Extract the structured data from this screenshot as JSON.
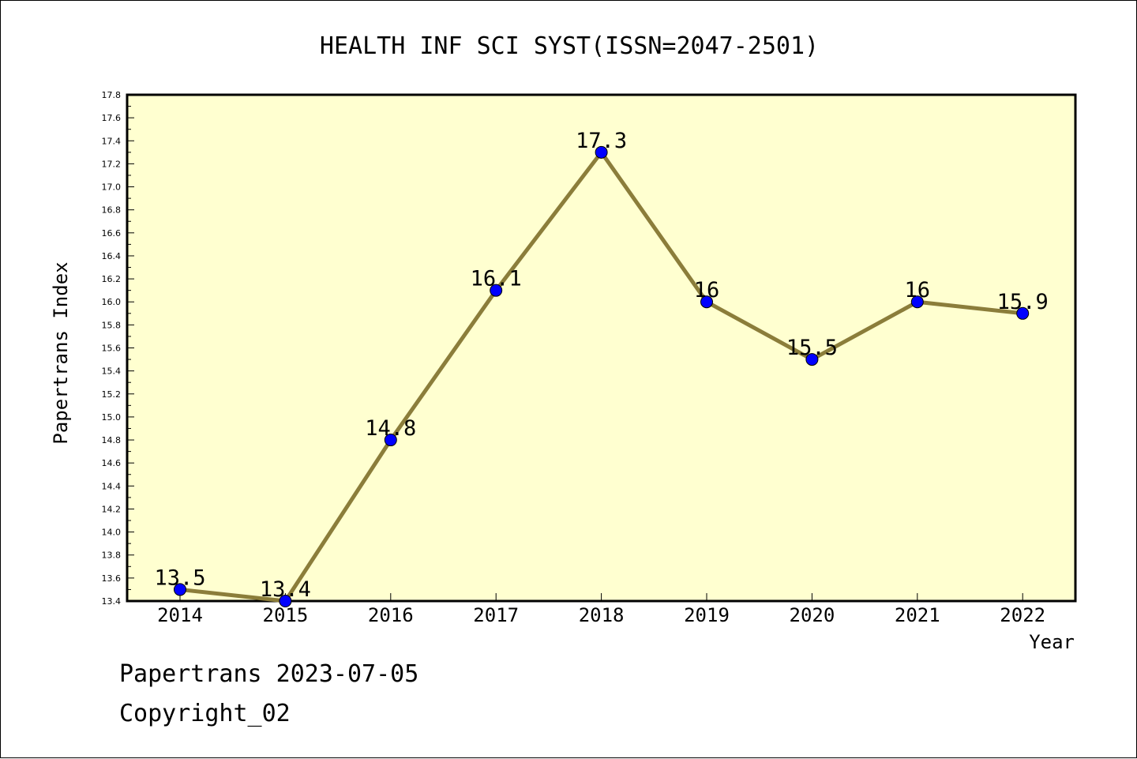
{
  "chart_data": {
    "type": "line",
    "title": "HEALTH INF SCI SYST(ISSN=2047-2501)",
    "xlabel": "Year",
    "ylabel": "Papertrans Index",
    "categories": [
      "2014",
      "2015",
      "2016",
      "2017",
      "2018",
      "2019",
      "2020",
      "2021",
      "2022"
    ],
    "values": [
      13.5,
      13.4,
      14.8,
      16.1,
      17.3,
      16.0,
      15.5,
      16.0,
      15.9
    ],
    "value_labels": [
      "13.5",
      "13.4",
      "14.8",
      "16.1",
      "17.3",
      "16",
      "15.5",
      "16",
      "15.9"
    ],
    "ylim": [
      13.4,
      17.8
    ],
    "yticks": [
      "13.4",
      "13.6",
      "13.8",
      "14.0",
      "14.2",
      "14.4",
      "14.6",
      "14.8",
      "15.0",
      "15.2",
      "15.4",
      "15.6",
      "15.8",
      "16.0",
      "16.2",
      "16.4",
      "16.6",
      "16.8",
      "17.0",
      "17.2",
      "17.4",
      "17.6",
      "17.8"
    ],
    "grid": false,
    "colors": {
      "plot_background": "#ffffd0",
      "line": "#8b7d3a",
      "marker": "#0000ff"
    }
  },
  "footer": {
    "source": "Papertrans 2023-07-05",
    "copyright": "Copyright_02"
  }
}
